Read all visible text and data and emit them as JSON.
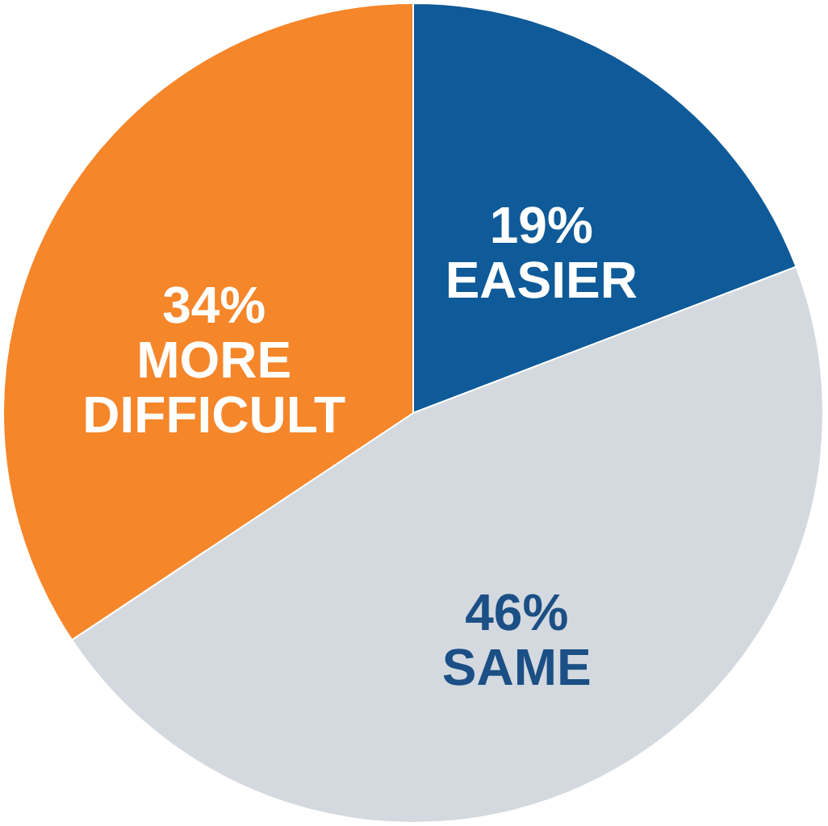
{
  "chart_data": {
    "type": "pie",
    "categories": [
      "EASIER",
      "SAME",
      "MORE DIFFICULT"
    ],
    "values": [
      19,
      46,
      34
    ],
    "colors": [
      "#0f5a98",
      "#d3d9df",
      "#f5862a"
    ],
    "value_labels": [
      "19%",
      "46%",
      "34%"
    ]
  }
}
